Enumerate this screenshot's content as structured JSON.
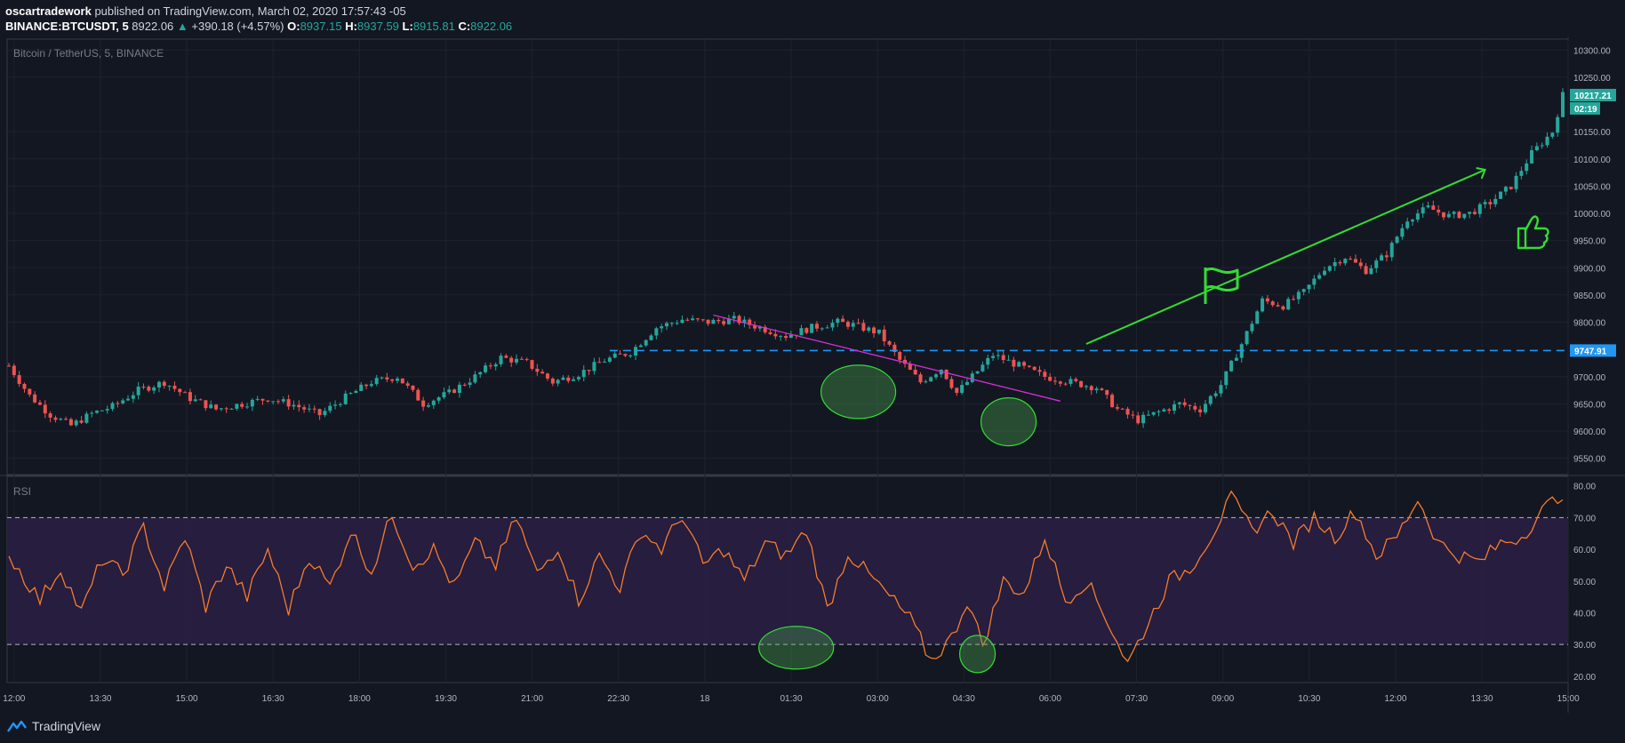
{
  "header": {
    "author": "oscartradework",
    "published_text": "published on TradingView.com, March 02, 2020 17:57:43 -05",
    "symbol": "BINANCE:BTCUSDT, 5",
    "last": "8922.06",
    "change": "+390.18 (+4.57%)",
    "o_label": "O:",
    "o": "8937.15",
    "h_label": "H:",
    "h": "8937.59",
    "l_label": "L:",
    "l": "8915.81",
    "c_label": "C:",
    "c": "8922.06"
  },
  "footer": {
    "brand": "TradingView"
  },
  "colors": {
    "background": "#131722",
    "up": "#26a69a",
    "down": "#ef5350",
    "rsi_line": "#f57c2c",
    "rsi_band": "#2a1f44",
    "level_line": "#2196f3",
    "trend_line": "#d22fd2",
    "annotation_green": "#33dd33"
  },
  "chart_data": [
    {
      "type": "candlestick",
      "title": "Bitcoin / TetherUS, 5, BINANCE",
      "xlabel": "",
      "ylabel": "",
      "ylim": [
        9520,
        10320
      ],
      "x_ticks": [
        "12:00",
        "13:30",
        "15:00",
        "16:30",
        "18:00",
        "19:30",
        "21:00",
        "22:30",
        "18",
        "01:30",
        "03:00",
        "04:30",
        "06:00",
        "07:30",
        "09:00",
        "10:30",
        "12:00",
        "13:30",
        "15:00"
      ],
      "y_ticks": [
        "10300.00",
        "10250.00",
        "10150.00",
        "10100.00",
        "10050.00",
        "10000.00",
        "9950.00",
        "9900.00",
        "9850.00",
        "9800.00",
        "9700.00",
        "9650.00",
        "9600.00",
        "9550.00"
      ],
      "price_path": [
        [
          0,
          9720
        ],
        [
          4,
          9665
        ],
        [
          8,
          9630
        ],
        [
          12,
          9610
        ],
        [
          16,
          9632
        ],
        [
          20,
          9645
        ],
        [
          25,
          9675
        ],
        [
          30,
          9690
        ],
        [
          35,
          9660
        ],
        [
          40,
          9640
        ],
        [
          45,
          9650
        ],
        [
          50,
          9660
        ],
        [
          55,
          9648
        ],
        [
          60,
          9630
        ],
        [
          65,
          9662
        ],
        [
          70,
          9690
        ],
        [
          75,
          9700
        ],
        [
          80,
          9650
        ],
        [
          85,
          9670
        ],
        [
          90,
          9700
        ],
        [
          95,
          9735
        ],
        [
          100,
          9725
        ],
        [
          105,
          9690
        ],
        [
          110,
          9705
        ],
        [
          115,
          9730
        ],
        [
          120,
          9745
        ],
        [
          125,
          9790
        ],
        [
          130,
          9805
        ],
        [
          135,
          9800
        ],
        [
          140,
          9805
        ],
        [
          145,
          9790
        ],
        [
          150,
          9775
        ],
        [
          155,
          9790
        ],
        [
          160,
          9800
        ],
        [
          163,
          9795
        ],
        [
          168,
          9780
        ],
        [
          172,
          9730
        ],
        [
          176,
          9690
        ],
        [
          180,
          9715
        ],
        [
          183,
          9670
        ],
        [
          186,
          9700
        ],
        [
          190,
          9740
        ],
        [
          195,
          9720
        ],
        [
          200,
          9700
        ],
        [
          205,
          9690
        ],
        [
          210,
          9680
        ],
        [
          214,
          9640
        ],
        [
          218,
          9620
        ],
        [
          222,
          9635
        ],
        [
          226,
          9650
        ],
        [
          230,
          9640
        ],
        [
          234,
          9685
        ],
        [
          238,
          9760
        ],
        [
          242,
          9840
        ],
        [
          246,
          9830
        ],
        [
          250,
          9855
        ],
        [
          254,
          9900
        ],
        [
          258,
          9920
        ],
        [
          262,
          9895
        ],
        [
          266,
          9925
        ],
        [
          270,
          9990
        ],
        [
          274,
          10010
        ],
        [
          278,
          9995
        ],
        [
          282,
          10000
        ],
        [
          286,
          10020
        ],
        [
          290,
          10050
        ],
        [
          294,
          10110
        ],
        [
          298,
          10150
        ],
        [
          300,
          10217
        ]
      ],
      "series": [
        {
          "name": "",
          "values": []
        }
      ],
      "price_labels": [
        {
          "value": 10217.21,
          "text": "10217.21",
          "sub": "02:19",
          "color": "#26a69a"
        },
        {
          "value": 9747.91,
          "text": "9747.91",
          "color": "#2196f3"
        }
      ]
    },
    {
      "type": "line",
      "title": "RSI",
      "xlabel": "",
      "ylabel": "",
      "ylim": [
        18,
        83
      ],
      "y_ticks": [
        "80.00",
        "70.00",
        "60.00",
        "50.00",
        "40.00",
        "30.00",
        "20.00"
      ],
      "bands": [
        30,
        70
      ],
      "rsi_path": [
        [
          0,
          58
        ],
        [
          6,
          44
        ],
        [
          10,
          54
        ],
        [
          14,
          40
        ],
        [
          18,
          57
        ],
        [
          22,
          52
        ],
        [
          26,
          67
        ],
        [
          30,
          48
        ],
        [
          34,
          64
        ],
        [
          38,
          42
        ],
        [
          42,
          55
        ],
        [
          46,
          45
        ],
        [
          50,
          60
        ],
        [
          54,
          41
        ],
        [
          58,
          58
        ],
        [
          62,
          48
        ],
        [
          66,
          66
        ],
        [
          70,
          53
        ],
        [
          74,
          71
        ],
        [
          78,
          55
        ],
        [
          82,
          60
        ],
        [
          86,
          48
        ],
        [
          90,
          62
        ],
        [
          94,
          55
        ],
        [
          98,
          70
        ],
        [
          102,
          52
        ],
        [
          106,
          61
        ],
        [
          110,
          44
        ],
        [
          114,
          58
        ],
        [
          118,
          48
        ],
        [
          122,
          66
        ],
        [
          126,
          60
        ],
        [
          130,
          71
        ],
        [
          134,
          55
        ],
        [
          138,
          60
        ],
        [
          142,
          50
        ],
        [
          146,
          62
        ],
        [
          150,
          58
        ],
        [
          154,
          66
        ],
        [
          158,
          41
        ],
        [
          162,
          59
        ],
        [
          166,
          52
        ],
        [
          170,
          45
        ],
        [
          174,
          38
        ],
        [
          178,
          25
        ],
        [
          182,
          32
        ],
        [
          185,
          44
        ],
        [
          188,
          30
        ],
        [
          192,
          50
        ],
        [
          196,
          46
        ],
        [
          200,
          64
        ],
        [
          204,
          44
        ],
        [
          208,
          50
        ],
        [
          212,
          38
        ],
        [
          216,
          24
        ],
        [
          220,
          37
        ],
        [
          224,
          50
        ],
        [
          228,
          54
        ],
        [
          232,
          64
        ],
        [
          236,
          76
        ],
        [
          240,
          66
        ],
        [
          244,
          72
        ],
        [
          248,
          62
        ],
        [
          252,
          70
        ],
        [
          256,
          64
        ],
        [
          260,
          72
        ],
        [
          264,
          58
        ],
        [
          268,
          64
        ],
        [
          272,
          76
        ],
        [
          276,
          62
        ],
        [
          280,
          58
        ],
        [
          284,
          56
        ],
        [
          288,
          62
        ],
        [
          292,
          64
        ],
        [
          296,
          72
        ],
        [
          300,
          78
        ]
      ],
      "series": [
        {
          "name": "",
          "values": []
        }
      ]
    }
  ]
}
